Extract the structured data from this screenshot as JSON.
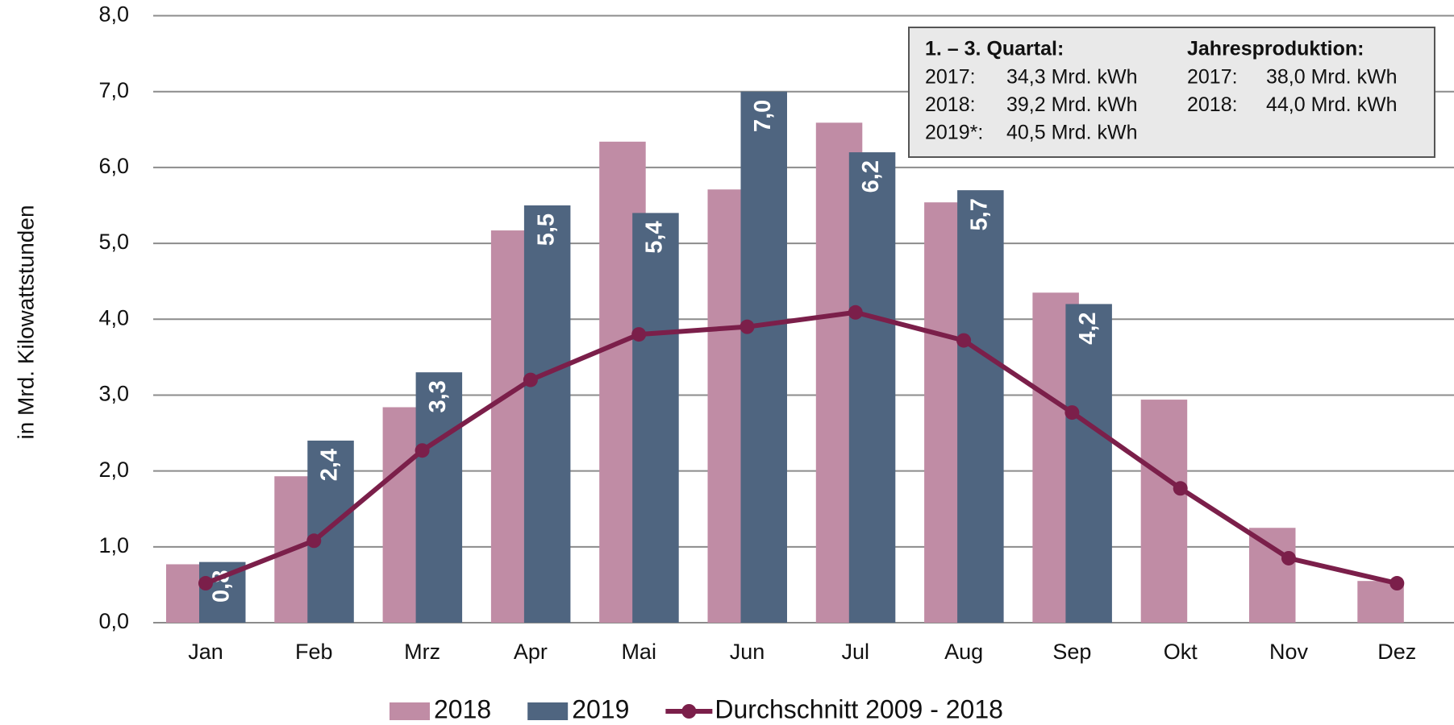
{
  "chart_data": {
    "type": "bar",
    "y_label": "in Mrd. Kilowattstunden",
    "categories": [
      "Jan",
      "Feb",
      "Mrz",
      "Apr",
      "Mai",
      "Jun",
      "Jul",
      "Aug",
      "Sep",
      "Okt",
      "Nov",
      "Dez"
    ],
    "series": [
      {
        "name": "2018",
        "type": "bar",
        "color": "#c08ca5",
        "values": [
          0.77,
          1.93,
          2.84,
          5.17,
          6.34,
          5.71,
          6.59,
          5.54,
          4.35,
          2.94,
          1.25,
          0.55
        ]
      },
      {
        "name": "2019",
        "type": "bar",
        "color": "#4f6580",
        "values": [
          0.8,
          2.4,
          3.3,
          5.5,
          5.4,
          7.0,
          6.2,
          5.7,
          4.2,
          null,
          null,
          null
        ],
        "value_labels": [
          "0,8",
          "2,4",
          "3,3",
          "5,5",
          "5,4",
          "7,0",
          "6,2",
          "5,7",
          "4,2",
          null,
          null,
          null
        ]
      },
      {
        "name": "Durchschnitt 2009 - 2018",
        "type": "line",
        "color": "#7b1f4a",
        "values": [
          0.52,
          1.08,
          2.27,
          3.2,
          3.8,
          3.9,
          4.09,
          3.72,
          2.77,
          1.77,
          0.85,
          0.52
        ]
      }
    ],
    "ylim": [
      0,
      8
    ],
    "yticks": [
      {
        "value": 0,
        "label": "0,0"
      },
      {
        "value": 1,
        "label": "1,0"
      },
      {
        "value": 2,
        "label": "2,0"
      },
      {
        "value": 3,
        "label": "3,0"
      },
      {
        "value": 4,
        "label": "4,0"
      },
      {
        "value": 5,
        "label": "5,0"
      },
      {
        "value": 6,
        "label": "6,0"
      },
      {
        "value": 7,
        "label": "7,0"
      },
      {
        "value": 8,
        "label": "8,0"
      }
    ],
    "grid": true,
    "legend": "bottom",
    "info_box": {
      "left": {
        "heading": "1. – 3. Quartal:",
        "rows": [
          [
            "2017:",
            "34,3 Mrd. kWh"
          ],
          [
            "2018:",
            "39,2 Mrd. kWh"
          ],
          [
            "2019*:",
            "40,5 Mrd. kWh"
          ]
        ]
      },
      "right": {
        "heading": "Jahresproduktion:",
        "rows": [
          [
            "2017:",
            "38,0 Mrd. kWh"
          ],
          [
            "2018:",
            "44,0 Mrd. kWh"
          ]
        ]
      }
    }
  }
}
